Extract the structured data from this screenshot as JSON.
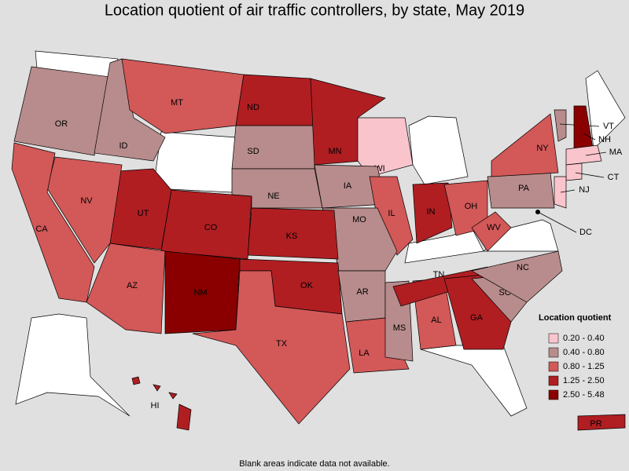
{
  "title": "Location quotient of air traffic controllers, by state, May 2019",
  "note": "Blank areas indicate data not available.",
  "legend": {
    "title": "Location quotient",
    "items": [
      {
        "label": "0.20 - 0.40",
        "color": "#f9c4cc"
      },
      {
        "label": "0.40 - 0.80",
        "color": "#b88c8c"
      },
      {
        "label": "0.80 - 1.25",
        "color": "#d35858"
      },
      {
        "label": "1.25 - 2.50",
        "color": "#b01e22"
      },
      {
        "label": "2.50 - 5.48",
        "color": "#8a0000"
      }
    ]
  },
  "states": [
    {
      "label": "OR",
      "color": "#b88c8c"
    },
    {
      "label": "ID",
      "color": "#b88c8c"
    },
    {
      "label": "MT",
      "color": "#d35858"
    },
    {
      "label": "ND",
      "color": "#b01e22"
    },
    {
      "label": "SD",
      "color": "#b88c8c"
    },
    {
      "label": "NE",
      "color": "#b88c8c"
    },
    {
      "label": "MN",
      "color": "#b01e22"
    },
    {
      "label": "WI",
      "color": "#f9c4cc"
    },
    {
      "label": "IA",
      "color": "#b88c8c"
    },
    {
      "label": "IL",
      "color": "#d35858"
    },
    {
      "label": "IN",
      "color": "#b01e22"
    },
    {
      "label": "OH",
      "color": "#d35858"
    },
    {
      "label": "MO",
      "color": "#b88c8c"
    },
    {
      "label": "KS",
      "color": "#b01e22"
    },
    {
      "label": "CO",
      "color": "#b01e22"
    },
    {
      "label": "UT",
      "color": "#b01e22"
    },
    {
      "label": "NV",
      "color": "#d35858"
    },
    {
      "label": "CA",
      "color": "#d35858"
    },
    {
      "label": "AZ",
      "color": "#d35858"
    },
    {
      "label": "NM",
      "color": "#8a0000"
    },
    {
      "label": "OK",
      "color": "#b01e22"
    },
    {
      "label": "TX",
      "color": "#d35858"
    },
    {
      "label": "AR",
      "color": "#b88c8c"
    },
    {
      "label": "LA",
      "color": "#d35858"
    },
    {
      "label": "MS",
      "color": "#b88c8c"
    },
    {
      "label": "AL",
      "color": "#d35858"
    },
    {
      "label": "TN",
      "color": "#b01e22"
    },
    {
      "label": "GA",
      "color": "#b01e22"
    },
    {
      "label": "SC",
      "color": "#b88c8c"
    },
    {
      "label": "NC",
      "color": "#b88c8c"
    },
    {
      "label": "WV",
      "color": "#d35858"
    },
    {
      "label": "PA",
      "color": "#b88c8c"
    },
    {
      "label": "NY",
      "color": "#d35858"
    },
    {
      "label": "VT",
      "color": "#b88c8c"
    },
    {
      "label": "NH",
      "color": "#8a0000"
    },
    {
      "label": "MA",
      "color": "#f9c4cc"
    },
    {
      "label": "CT",
      "color": "#f9c4cc"
    },
    {
      "label": "NJ",
      "color": "#f9c4cc"
    },
    {
      "label": "DC",
      "color": "#000000"
    },
    {
      "label": "HI",
      "color": "#b01e22"
    },
    {
      "label": "PR",
      "color": "#b01e22"
    }
  ]
}
